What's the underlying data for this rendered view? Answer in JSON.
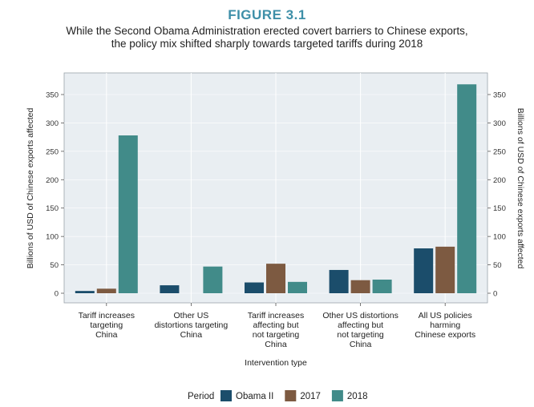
{
  "figure_label": "FIGURE 3.1",
  "subtitle_line1": "While the Second Obama Administration erected covert barriers to Chinese exports,",
  "subtitle_line2": "the policy mix shifted sharply towards targeted tariffs during 2018",
  "chart_data": {
    "type": "bar",
    "title": "FIGURE 3.1",
    "subtitle": "While the Second Obama Administration erected covert barriers to Chinese exports, the policy mix shifted sharply towards targeted tariffs during 2018",
    "xlabel": "Intervention type",
    "ylabel": "Billions of USD of Chinese exports affected",
    "ylabel_right": "Billions of USD of Chinese exports affected",
    "ylim": [
      -10,
      380
    ],
    "yticks": [
      0,
      50,
      100,
      150,
      200,
      250,
      300,
      350
    ],
    "grid": true,
    "legend_title": "Period",
    "legend_position": "bottom",
    "categories": [
      [
        "Tariff increases",
        "targeting",
        "China"
      ],
      [
        "Other US",
        "distortions targeting",
        "China"
      ],
      [
        "Tariff increases",
        "affecting but",
        "not targeting",
        "China"
      ],
      [
        "Other US distortions",
        "affecting but",
        "not targeting",
        "China"
      ],
      [
        "All US policies",
        "harming",
        "Chinese exports"
      ]
    ],
    "series": [
      {
        "name": "Obama II",
        "color": "#1b4d6b",
        "values": [
          4,
          14,
          19,
          41,
          79
        ]
      },
      {
        "name": "2017",
        "color": "#7d5a41",
        "values": [
          8,
          0,
          52,
          23,
          82
        ]
      },
      {
        "name": "2018",
        "color": "#418b89",
        "values": [
          278,
          47,
          20,
          24,
          368
        ]
      }
    ]
  }
}
